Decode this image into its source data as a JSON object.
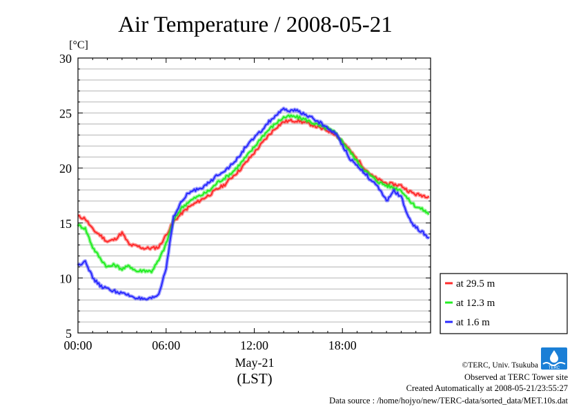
{
  "chart_data": {
    "type": "line",
    "title": "Air Temperature / 2008-05-21",
    "unit_label": "[°C]",
    "xlabel_date": "May-21",
    "xlabel_tz": "(LST)",
    "xlim_hours": [
      0,
      24
    ],
    "ylim": [
      5,
      30
    ],
    "x_ticks": [
      {
        "hour": 0,
        "label": "00:00"
      },
      {
        "hour": 6,
        "label": "06:00"
      },
      {
        "hour": 12,
        "label": "12:00"
      },
      {
        "hour": 18,
        "label": "18:00"
      }
    ],
    "y_ticks": [
      {
        "value": 5,
        "label": "5"
      },
      {
        "value": 10,
        "label": "10"
      },
      {
        "value": 15,
        "label": "15"
      },
      {
        "value": 20,
        "label": "20"
      },
      {
        "value": 25,
        "label": "25"
      },
      {
        "value": 30,
        "label": "30"
      }
    ],
    "grid": {
      "horizontal_every": 1,
      "vertical": false
    },
    "legend_position": "right-bottom",
    "x_hours": [
      0,
      0.5,
      1,
      1.5,
      2,
      2.5,
      3,
      3.5,
      4,
      4.5,
      5,
      5.5,
      6,
      6.5,
      7,
      7.5,
      8,
      8.5,
      9,
      9.5,
      10,
      10.5,
      11,
      11.5,
      12,
      12.5,
      13,
      13.5,
      14,
      14.5,
      15,
      15.5,
      16,
      16.5,
      17,
      17.5,
      18,
      18.5,
      19,
      19.5,
      20,
      20.5,
      21,
      21.5,
      22,
      22.5,
      23,
      23.5,
      23.9
    ],
    "series": [
      {
        "name": "at 29.5 m",
        "color": "#ff2a2a",
        "values": [
          15.6,
          15.4,
          14.4,
          13.9,
          13.3,
          13.5,
          14.1,
          13.0,
          12.9,
          12.7,
          12.7,
          12.8,
          13.9,
          15.1,
          15.8,
          16.4,
          16.8,
          17.2,
          17.6,
          18.1,
          18.5,
          19.2,
          19.8,
          20.6,
          21.4,
          22.2,
          23.0,
          23.7,
          24.2,
          24.3,
          24.3,
          24.1,
          23.9,
          23.6,
          23.4,
          23.1,
          22.4,
          21.6,
          20.8,
          20.0,
          19.3,
          18.9,
          18.6,
          18.5,
          18.4,
          17.9,
          17.6,
          17.5,
          17.4
        ]
      },
      {
        "name": "at 12.3 m",
        "color": "#22ee22",
        "values": [
          14.8,
          14.5,
          12.8,
          11.8,
          11.0,
          11.2,
          10.8,
          11.1,
          10.6,
          10.7,
          10.6,
          11.6,
          13.1,
          15.2,
          16.3,
          16.9,
          17.3,
          17.6,
          18.0,
          18.7,
          19.1,
          19.6,
          20.3,
          21.1,
          21.9,
          22.8,
          23.5,
          24.1,
          24.6,
          24.7,
          24.6,
          24.4,
          24.1,
          23.8,
          23.6,
          23.2,
          22.4,
          21.5,
          20.6,
          19.8,
          19.2,
          18.7,
          18.4,
          18.2,
          18.0,
          17.1,
          16.5,
          16.2,
          15.8
        ]
      },
      {
        "name": "at 1.6 m",
        "color": "#2a2aff",
        "values": [
          11.1,
          11.6,
          10.0,
          9.3,
          9.0,
          8.8,
          8.6,
          8.4,
          8.2,
          8.0,
          8.1,
          8.5,
          10.9,
          15.5,
          16.8,
          17.7,
          18.0,
          18.3,
          18.7,
          19.4,
          19.8,
          20.3,
          21.1,
          22.1,
          22.7,
          23.4,
          24.2,
          24.8,
          25.3,
          25.2,
          25.2,
          24.8,
          24.5,
          24.1,
          23.6,
          23.2,
          22.1,
          20.9,
          20.2,
          19.6,
          18.8,
          18.1,
          17.0,
          17.9,
          17.4,
          15.4,
          14.6,
          14.1,
          13.6
        ]
      }
    ]
  },
  "credits": {
    "copyright": "©TERC, Univ. Tsukuba",
    "observed": "Observed at TERC Tower site",
    "created": "Created Automatically at 2008-05-21/23:55:27",
    "source": "Data source : /home/hojyo/new/TERC-data/sorted_data/MET.10s.dat"
  },
  "logo": {
    "text": "TERC",
    "color": "#1a7fd6"
  }
}
